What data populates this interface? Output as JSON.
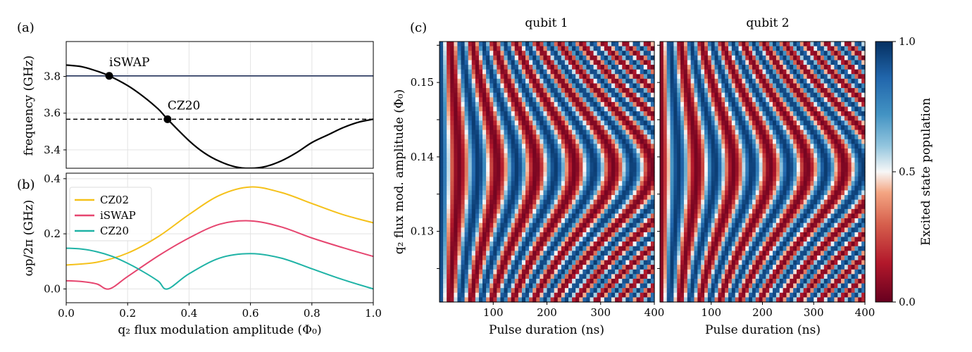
{
  "panels": {
    "a": {
      "tag": "(a)"
    },
    "b": {
      "tag": "(b)"
    },
    "c": {
      "tag": "(c)"
    }
  },
  "colors": {
    "CZ02": "#f5c11a",
    "iSWAP": "#e6456f",
    "CZ20": "#1fb3a6",
    "freq_curve": "#000000",
    "hline_solid": "#1a2a55",
    "hline_dashed": "#000000"
  },
  "chart_data": [
    {
      "id": "a",
      "type": "line",
      "ylabel": "frequency (GHz)",
      "xlim": [
        0,
        1
      ],
      "ylim": [
        3.3,
        3.99
      ],
      "yticks": [
        "3.4",
        "3.6",
        "3.8"
      ],
      "series": [
        {
          "x": [
            0,
            0.05,
            0.1,
            0.14,
            0.2,
            0.25,
            0.3,
            0.33,
            0.4,
            0.45,
            0.5,
            0.55,
            0.6,
            0.65,
            0.7,
            0.75,
            0.8,
            0.85,
            0.9,
            0.95,
            1.0
          ],
          "y": [
            3.862,
            3.853,
            3.829,
            3.803,
            3.75,
            3.692,
            3.622,
            3.567,
            3.45,
            3.383,
            3.337,
            3.308,
            3.3,
            3.31,
            3.34,
            3.385,
            3.44,
            3.48,
            3.52,
            3.55,
            3.567
          ]
        }
      ],
      "hlines": [
        {
          "y": 3.803,
          "style": "solid"
        },
        {
          "y": 3.567,
          "style": "dashed"
        }
      ],
      "points": [
        {
          "label": "iSWAP",
          "x": 0.14,
          "y": 3.803
        },
        {
          "label": "CZ20",
          "x": 0.33,
          "y": 3.567
        }
      ]
    },
    {
      "id": "b",
      "type": "line",
      "xlabel": "q₂ flux modulation amplitude (Φ₀)",
      "ylabel": "ωp/2π (GHz)",
      "xlim": [
        0,
        1
      ],
      "ylim": [
        -0.05,
        0.42
      ],
      "xticks": [
        "0.0",
        "0.2",
        "0.4",
        "0.6",
        "0.8",
        "1.0"
      ],
      "yticks": [
        "0.0",
        "0.2",
        "0.4"
      ],
      "legend_position": "top-left",
      "series": [
        {
          "name": "CZ02",
          "x": [
            0,
            0.1,
            0.2,
            0.3,
            0.4,
            0.5,
            0.6,
            0.7,
            0.8,
            0.9,
            1.0
          ],
          "y": [
            0.087,
            0.097,
            0.13,
            0.19,
            0.27,
            0.34,
            0.37,
            0.35,
            0.31,
            0.27,
            0.24
          ]
        },
        {
          "name": "iSWAP",
          "x": [
            0,
            0.05,
            0.1,
            0.14,
            0.2,
            0.3,
            0.4,
            0.5,
            0.6,
            0.7,
            0.8,
            0.9,
            1.0
          ],
          "y": [
            0.03,
            0.027,
            0.018,
            0.0,
            0.045,
            0.12,
            0.185,
            0.235,
            0.247,
            0.225,
            0.185,
            0.15,
            0.118
          ]
        },
        {
          "name": "CZ20",
          "x": [
            0,
            0.05,
            0.1,
            0.15,
            0.2,
            0.25,
            0.3,
            0.33,
            0.4,
            0.5,
            0.6,
            0.7,
            0.8,
            0.9,
            1.0
          ],
          "y": [
            0.148,
            0.145,
            0.135,
            0.118,
            0.093,
            0.063,
            0.028,
            0.0,
            0.055,
            0.112,
            0.128,
            0.112,
            0.073,
            0.034,
            0.0
          ]
        }
      ]
    },
    {
      "id": "c1",
      "type": "heatmap",
      "title": "qubit 1",
      "xlabel": "Pulse duration (ns)",
      "ylabel": "q₂ flux mod. amplitude (Φ₀)",
      "xlim": [
        0,
        400
      ],
      "ylim": [
        0.1205,
        0.1555
      ],
      "xticks": [
        "100",
        "200",
        "300",
        "400"
      ],
      "yticks": [
        "0.13",
        "0.14",
        "0.15"
      ],
      "center_amplitude": 0.1385,
      "period_ns_at_center": 72,
      "phase_at_zero": 0
    },
    {
      "id": "c2",
      "type": "heatmap",
      "title": "qubit 2",
      "xlabel": "Pulse duration (ns)",
      "xlim": [
        0,
        400
      ],
      "ylim": [
        0.1205,
        0.1555
      ],
      "xticks": [
        "100",
        "200",
        "300",
        "400"
      ],
      "center_amplitude": 0.1385,
      "period_ns_at_center": 72,
      "phase_at_zero": 3.14159
    },
    {
      "id": "colorbar",
      "type": "colorbar",
      "label": "Excited state population",
      "range": [
        0,
        1
      ],
      "ticks": [
        "0.0",
        "0.5",
        "1.0"
      ]
    }
  ]
}
